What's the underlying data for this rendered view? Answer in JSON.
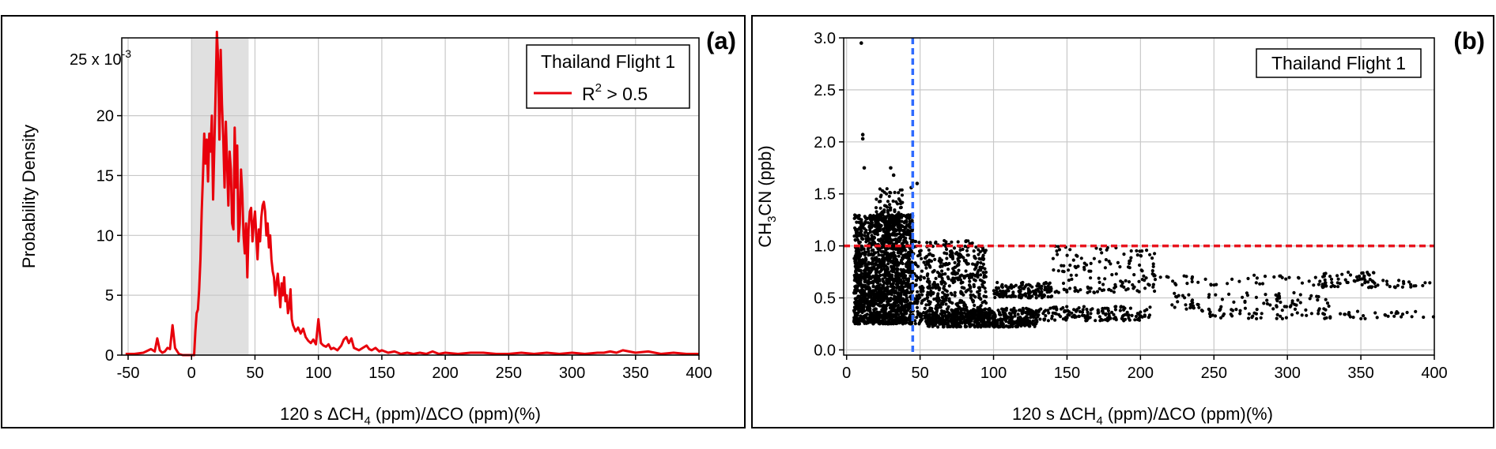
{
  "chart_data": [
    {
      "type": "line",
      "panel_label": "(a)",
      "xlabel_prefix": "120 s ΔCH",
      "xlabel_sub1": "4",
      "xlabel_suffix": " (ppm)/ΔCO (ppm)(%)",
      "ylabel": "Probability Density",
      "y_multiplier_prefix": "25 x 10",
      "y_multiplier_exp": "-3",
      "xlim": [
        -55,
        400
      ],
      "ylim": [
        0,
        26.5
      ],
      "xticks": [
        -50,
        0,
        50,
        100,
        150,
        200,
        250,
        300,
        350,
        400
      ],
      "yticks": [
        0,
        5,
        10,
        15,
        20
      ],
      "grid": true,
      "shaded_region": {
        "x_start": 0,
        "x_end": 45,
        "color": "#e0e0e0"
      },
      "legend": {
        "title": "Thailand Flight 1",
        "entry_prefix": "R",
        "entry_exp": "2",
        "entry_suffix": " > 0.5",
        "placement": "top-right"
      },
      "series": [
        {
          "name": "R² > 0.5",
          "color": "#e8000b",
          "x": [
            -52,
            -45,
            -38,
            -32,
            -29,
            -27,
            -25,
            -23,
            -21,
            -19,
            -17,
            -15,
            -13,
            -10,
            -7,
            -4,
            -2,
            0,
            2,
            3,
            4,
            5,
            6,
            7,
            8,
            9,
            10,
            11,
            12,
            13,
            14,
            15,
            16,
            17,
            18,
            19,
            20,
            21,
            22,
            23,
            24,
            25,
            26,
            27,
            28,
            29,
            30,
            31,
            32,
            33,
            34,
            35,
            36,
            37,
            38,
            39,
            40,
            41,
            42,
            43,
            44,
            45,
            46,
            47,
            48,
            49,
            50,
            51,
            52,
            53,
            54,
            55,
            56,
            57,
            58,
            59,
            60,
            61,
            62,
            63,
            64,
            65,
            66,
            67,
            68,
            69,
            70,
            71,
            72,
            73,
            74,
            75,
            76,
            77,
            78,
            79,
            80,
            82,
            84,
            86,
            88,
            90,
            92,
            94,
            96,
            98,
            100,
            102,
            104,
            106,
            108,
            110,
            112,
            115,
            118,
            120,
            122,
            124,
            126,
            128,
            130,
            132,
            135,
            138,
            140,
            142,
            145,
            148,
            150,
            155,
            160,
            165,
            170,
            175,
            180,
            185,
            190,
            195,
            200,
            210,
            220,
            230,
            240,
            250,
            260,
            270,
            280,
            290,
            300,
            310,
            320,
            325,
            330,
            335,
            340,
            350,
            360,
            370,
            380,
            390,
            400
          ],
          "y": [
            0.1,
            0.1,
            0.2,
            0.5,
            0.3,
            1.4,
            0.4,
            0.2,
            0.3,
            0.6,
            0.5,
            2.5,
            0.6,
            0.1,
            0,
            0,
            0,
            0,
            0,
            2.0,
            3.5,
            3.8,
            5.5,
            8.0,
            12.0,
            15.0,
            18.5,
            16.0,
            18.0,
            14.5,
            18.5,
            17.0,
            20.0,
            13.0,
            17.5,
            22.0,
            27.0,
            24.5,
            18.0,
            25.5,
            21.0,
            18.0,
            14.0,
            19.5,
            16.0,
            12.5,
            17.0,
            15.5,
            11.0,
            10.5,
            19.0,
            14.0,
            17.5,
            9.5,
            11.0,
            15.5,
            13.5,
            10.0,
            8.5,
            11.0,
            6.5,
            10.5,
            12.0,
            12.3,
            9.5,
            11.0,
            12.0,
            10.0,
            8.0,
            10.5,
            9.5,
            11.5,
            12.5,
            12.8,
            12.0,
            10.0,
            11.0,
            9.0,
            10.0,
            8.0,
            7.0,
            6.5,
            5.0,
            6.0,
            6.8,
            5.5,
            4.0,
            6.0,
            5.0,
            6.5,
            4.5,
            5.0,
            3.5,
            4.0,
            5.5,
            3.0,
            2.5,
            2.0,
            2.3,
            1.8,
            2.2,
            1.5,
            1.2,
            1.0,
            1.3,
            0.9,
            3.0,
            1.0,
            0.8,
            0.7,
            0.9,
            0.5,
            0.6,
            0.4,
            0.8,
            1.3,
            1.5,
            1.0,
            1.4,
            0.6,
            0.5,
            0.4,
            0.6,
            0.8,
            0.5,
            0.4,
            0.6,
            0.3,
            0.4,
            0.2,
            0.3,
            0.1,
            0.2,
            0.1,
            0.2,
            0.1,
            0.3,
            0.1,
            0.2,
            0.1,
            0.2,
            0.2,
            0.1,
            0.1,
            0.2,
            0.1,
            0.2,
            0.1,
            0.2,
            0.1,
            0.2,
            0.2,
            0.3,
            0.2,
            0.4,
            0.2,
            0.3,
            0.1,
            0.2,
            0.1,
            0.1
          ]
        }
      ]
    },
    {
      "type": "scatter",
      "panel_label": "(b)",
      "xlabel_prefix": "120 s ΔCH",
      "xlabel_sub1": "4",
      "xlabel_suffix": " (ppm)/ΔCO (ppm)(%)",
      "ylabel_prefix": "CH",
      "ylabel_sub": "3",
      "ylabel_suffix": "CN (ppb)",
      "xlim": [
        -2,
        400
      ],
      "ylim": [
        -0.05,
        3.0
      ],
      "xticks": [
        0,
        50,
        100,
        150,
        200,
        250,
        300,
        350,
        400
      ],
      "yticks": [
        0.0,
        0.5,
        1.0,
        1.5,
        2.0,
        2.5,
        3.0
      ],
      "grid": true,
      "legend": {
        "title": "Thailand Flight 1",
        "placement": "top-right"
      },
      "reference_lines": [
        {
          "orientation": "horizontal",
          "value": 1.0,
          "color": "#e8141e",
          "style": "dashed"
        },
        {
          "orientation": "vertical",
          "value": 45,
          "color": "#2f6bff",
          "style": "dashed"
        }
      ],
      "outliers": [
        {
          "x": 10,
          "y": 2.95
        },
        {
          "x": 11,
          "y": 2.07
        },
        {
          "x": 11,
          "y": 2.03
        },
        {
          "x": 12,
          "y": 1.75
        },
        {
          "x": 30,
          "y": 1.75
        },
        {
          "x": 32,
          "y": 1.68
        },
        {
          "x": 48,
          "y": 1.6
        },
        {
          "x": 44,
          "y": 1.56
        }
      ],
      "clusters": [
        {
          "x_range": [
            5,
            45
          ],
          "y_range": [
            0.25,
            1.3
          ],
          "count": 1700,
          "seed": 11
        },
        {
          "x_range": [
            20,
            38
          ],
          "y_range": [
            1.2,
            1.55
          ],
          "count": 90,
          "seed": 12
        },
        {
          "x_range": [
            45,
            95
          ],
          "y_range": [
            0.25,
            1.05
          ],
          "count": 600,
          "seed": 13
        },
        {
          "x_range": [
            55,
            130
          ],
          "y_range": [
            0.22,
            0.4
          ],
          "count": 500,
          "seed": 14
        },
        {
          "x_range": [
            100,
            140
          ],
          "y_range": [
            0.5,
            0.65
          ],
          "count": 150,
          "seed": 15
        },
        {
          "x_range": [
            130,
            210
          ],
          "y_range": [
            0.28,
            0.42
          ],
          "count": 160,
          "seed": 16
        },
        {
          "x_range": [
            140,
            210
          ],
          "y_range": [
            0.55,
            1.0
          ],
          "count": 140,
          "seed": 17
        },
        {
          "x_range": [
            220,
            330
          ],
          "y_range": [
            0.38,
            0.55
          ],
          "count": 90,
          "seed": 18
        },
        {
          "x_range": [
            240,
            400
          ],
          "y_range": [
            0.3,
            0.38
          ],
          "count": 70,
          "seed": 19
        },
        {
          "x_range": [
            320,
            360
          ],
          "y_range": [
            0.6,
            0.75
          ],
          "count": 60,
          "seed": 20
        },
        {
          "x_range": [
            360,
            400
          ],
          "y_range": [
            0.6,
            0.68
          ],
          "count": 20,
          "seed": 21
        },
        {
          "x_range": [
            200,
            330
          ],
          "y_range": [
            0.62,
            0.72
          ],
          "count": 50,
          "seed": 22
        }
      ]
    }
  ]
}
